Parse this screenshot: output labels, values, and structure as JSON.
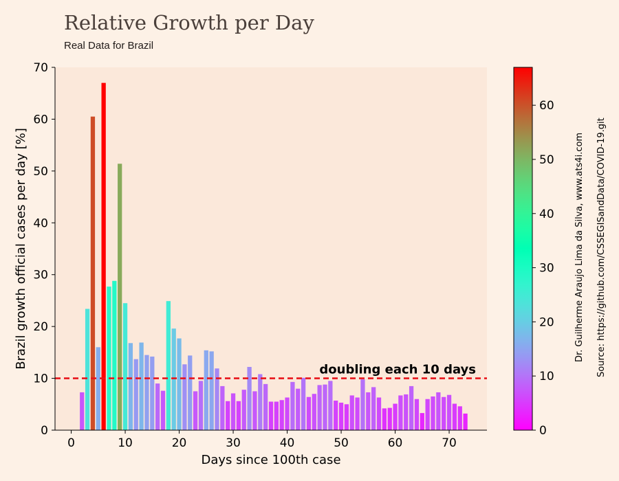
{
  "header": {
    "title": "Relative Growth per Day",
    "subtitle": "Real Data for Brazil"
  },
  "credits": {
    "line1": "Dr. Guilherme Araujo Lima da Silva, www.ats4i.com",
    "line2": "Source: https://github.com/CSSEGISandData/COVID-19.git"
  },
  "chart_data": {
    "type": "bar",
    "xlabel": "Days since 100th case",
    "ylabel": "Brazil growth official cases per day [%]",
    "xlim": [
      -3,
      77
    ],
    "ylim": [
      0,
      70
    ],
    "xticks": [
      0,
      10,
      20,
      30,
      40,
      50,
      60,
      70
    ],
    "yticks": [
      0,
      10,
      20,
      30,
      40,
      50,
      60,
      70
    ],
    "colormap": "rainbow",
    "colorbar": {
      "min": 0,
      "max": 67,
      "ticks": [
        0,
        10,
        20,
        30,
        40,
        50,
        60
      ]
    },
    "reference_line": {
      "y": 10,
      "label": "doubling each 10 days",
      "color": "#e8141b"
    },
    "x": [
      2,
      3,
      4,
      5,
      6,
      7,
      8,
      9,
      10,
      11,
      12,
      13,
      14,
      15,
      16,
      17,
      18,
      19,
      20,
      21,
      22,
      23,
      24,
      25,
      26,
      27,
      28,
      29,
      30,
      31,
      32,
      33,
      34,
      35,
      36,
      37,
      38,
      39,
      40,
      41,
      42,
      43,
      44,
      45,
      46,
      47,
      48,
      49,
      50,
      51,
      52,
      53,
      54,
      55,
      56,
      57,
      58,
      59,
      60,
      61,
      62,
      63,
      64,
      65,
      66,
      67,
      68,
      69,
      70,
      71,
      72,
      73
    ],
    "values": [
      7.3,
      23.4,
      60.5,
      16.0,
      67.0,
      27.7,
      28.8,
      51.4,
      24.5,
      16.8,
      13.7,
      16.9,
      14.5,
      14.2,
      9.0,
      7.6,
      24.9,
      19.6,
      17.7,
      12.7,
      14.4,
      7.5,
      9.5,
      15.4,
      15.2,
      11.9,
      8.5,
      5.6,
      7.1,
      5.6,
      7.8,
      12.2,
      7.5,
      10.8,
      8.9,
      5.5,
      5.5,
      5.8,
      6.3,
      9.3,
      8.0,
      10.1,
      6.4,
      7.0,
      8.7,
      8.8,
      9.5,
      5.7,
      5.3,
      5.0,
      6.7,
      6.3,
      9.8,
      7.3,
      8.3,
      6.3,
      4.2,
      4.3,
      5.1,
      6.7,
      6.9,
      8.5,
      6.0,
      3.3,
      6.0,
      6.5,
      7.3,
      6.4,
      6.8,
      5.1,
      4.6,
      3.2
    ]
  }
}
